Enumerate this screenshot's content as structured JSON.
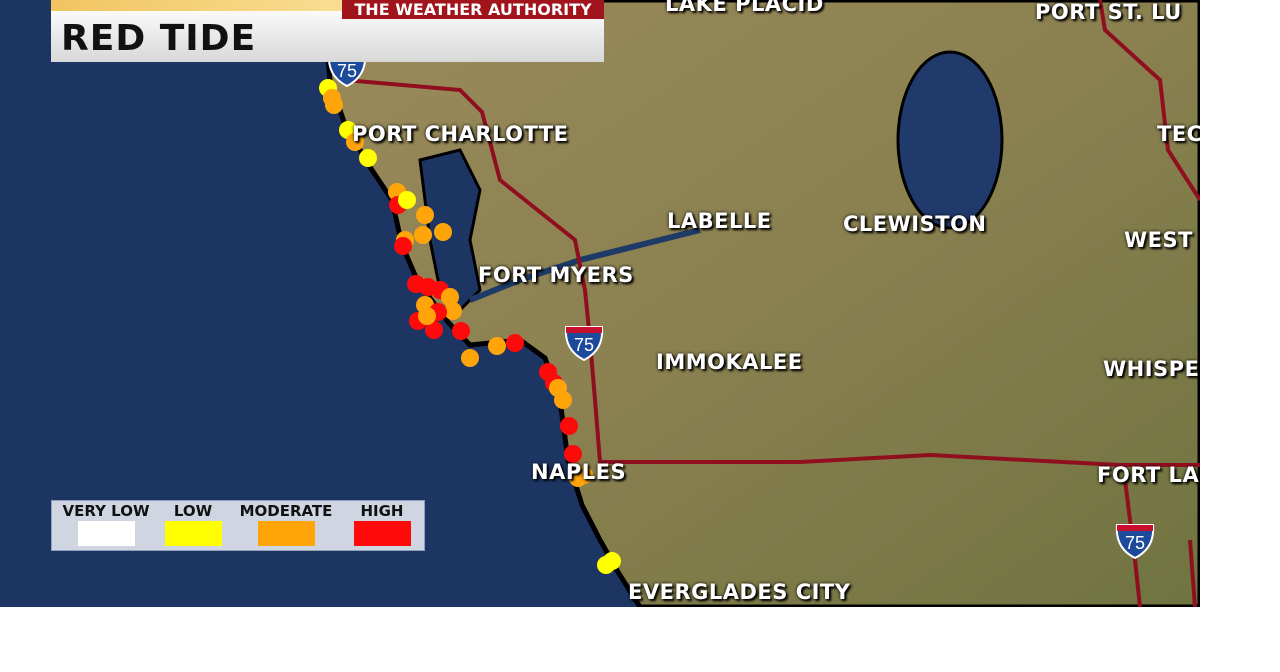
{
  "banner": {
    "title": "RED TIDE",
    "brand": "THE WEATHER AUTHORITY"
  },
  "legend": [
    {
      "label": "VERY LOW",
      "color": "#ffffff"
    },
    {
      "label": "LOW",
      "color": "#ffff00"
    },
    {
      "label": "MODERATE",
      "color": "#ffa50a"
    },
    {
      "label": "HIGH",
      "color": "#ff0a0a"
    }
  ],
  "cities": [
    "LAKE PLACID",
    "PORT ST. LU",
    "PORT CHARLOTTE",
    "TEC",
    "LABELLE",
    "CLEWISTON",
    "WEST",
    "FORT MYERS",
    "IMMOKALEE",
    "WHISPE",
    "NAPLES",
    "FORT LA",
    "EVERGLADES CITY"
  ],
  "highway_shields": [
    "75",
    "75",
    "75"
  ],
  "sample_levels": [
    "low",
    "moderate",
    "moderate",
    "low",
    "moderate",
    "low",
    "moderate",
    "high",
    "low",
    "moderate",
    "moderate",
    "moderate",
    "moderate",
    "high",
    "high",
    "high",
    "high",
    "moderate",
    "moderate",
    "moderate",
    "high",
    "high",
    "high",
    "high",
    "moderate",
    "moderate",
    "moderate",
    "high",
    "high",
    "high",
    "moderate",
    "moderate",
    "moderate",
    "high",
    "moderate",
    "high",
    "low",
    "low"
  ]
}
